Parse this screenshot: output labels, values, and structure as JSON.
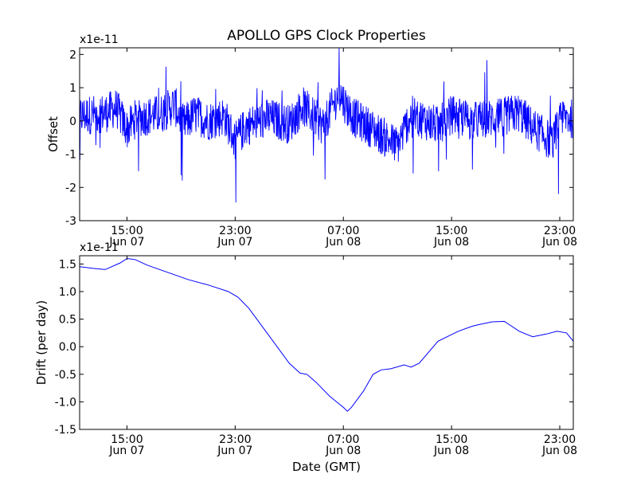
{
  "title": "APOLLO GPS Clock Properties",
  "chart_data": [
    {
      "type": "line",
      "title": "APOLLO GPS Clock Properties",
      "ylabel": "Offset",
      "xlabel": "",
      "y_multiplier_label": "x1e-11",
      "ylim": [
        -3,
        2.2
      ],
      "yticks": [
        -3,
        -2,
        -1,
        0,
        1,
        2
      ],
      "ytick_labels": [
        "-3",
        "-2",
        "-1",
        "0",
        "1",
        "2"
      ],
      "xlim": [
        "Jun 07 11:30",
        "Jun 09 00:00"
      ],
      "xticks": [
        {
          "time": "15:00",
          "date": "Jun 07"
        },
        {
          "time": "23:00",
          "date": "Jun 07"
        },
        {
          "time": "07:00",
          "date": "Jun 08"
        },
        {
          "time": "15:00",
          "date": "Jun 08"
        },
        {
          "time": "23:00",
          "date": "Jun 08"
        }
      ],
      "color": "#0000ff",
      "series": [
        {
          "x_hours_since_jun07_0000": [
            11.5,
            13.5,
            14.2,
            15.0,
            15.7,
            17.5,
            18.5,
            19.2,
            20.0,
            21.0,
            22.2,
            23.0,
            23.8,
            25.5,
            27.0,
            28.0,
            29.5,
            30.7,
            31.2,
            31.8,
            33.0,
            35.0,
            36.0,
            38.0,
            39.0,
            40.5,
            42.5,
            44.0,
            45.0,
            46.5,
            47.2,
            48.0
          ],
          "y_x1e-11": [
            0.3,
            0.5,
            0.8,
            -0.5,
            0.2,
            0.4,
            1.0,
            -0.2,
            0.4,
            0.0,
            0.3,
            -1.2,
            -0.3,
            0.2,
            -0.2,
            0.9,
            -0.3,
            1.7,
            0.9,
            0.2,
            -0.4,
            -1.5,
            0.4,
            -0.3,
            0.4,
            0.0,
            0.2,
            0.5,
            -0.4,
            -1.3,
            0.3,
            0.1
          ]
        }
      ]
    },
    {
      "type": "line",
      "title": "",
      "ylabel": "Drift (per day)",
      "xlabel": "Date (GMT)",
      "y_multiplier_label": "x1e-11",
      "ylim": [
        -1.5,
        1.65
      ],
      "yticks": [
        -1.5,
        -1.0,
        -0.5,
        0.0,
        0.5,
        1.0,
        1.5
      ],
      "ytick_labels": [
        "-1.5",
        "-1.0",
        "-0.5",
        "0.0",
        "0.5",
        "1.0",
        "1.5"
      ],
      "xlim": [
        "Jun 07 11:30",
        "Jun 09 00:00"
      ],
      "xticks": [
        {
          "time": "15:00",
          "date": "Jun 07"
        },
        {
          "time": "23:00",
          "date": "Jun 07"
        },
        {
          "time": "07:00",
          "date": "Jun 08"
        },
        {
          "time": "15:00",
          "date": "Jun 08"
        },
        {
          "time": "23:00",
          "date": "Jun 08"
        }
      ],
      "color": "#0000ff",
      "series": [
        {
          "x_hours_since_jun07_0000": [
            11.5,
            12.5,
            13.4,
            14.5,
            15.0,
            15.6,
            16.5,
            18.0,
            19.5,
            21.0,
            22.5,
            23.2,
            24.0,
            25.5,
            27.0,
            27.8,
            28.3,
            29.0,
            30.0,
            31.0,
            31.3,
            31.6,
            32.5,
            33.2,
            33.8,
            34.5,
            35.5,
            36.0,
            36.6,
            38.0,
            39.5,
            40.5,
            41.0,
            42.0,
            42.9,
            44.0,
            45.0,
            46.0,
            46.8,
            47.5,
            48.0
          ],
          "y_x1e-11": [
            1.45,
            1.42,
            1.4,
            1.52,
            1.6,
            1.58,
            1.48,
            1.35,
            1.22,
            1.12,
            1.0,
            0.9,
            0.7,
            0.2,
            -0.3,
            -0.48,
            -0.5,
            -0.65,
            -0.9,
            -1.1,
            -1.17,
            -1.1,
            -0.8,
            -0.5,
            -0.42,
            -0.4,
            -0.33,
            -0.37,
            -0.3,
            0.1,
            0.28,
            0.37,
            0.4,
            0.45,
            0.46,
            0.28,
            0.18,
            0.23,
            0.28,
            0.25,
            0.1
          ]
        }
      ]
    }
  ]
}
